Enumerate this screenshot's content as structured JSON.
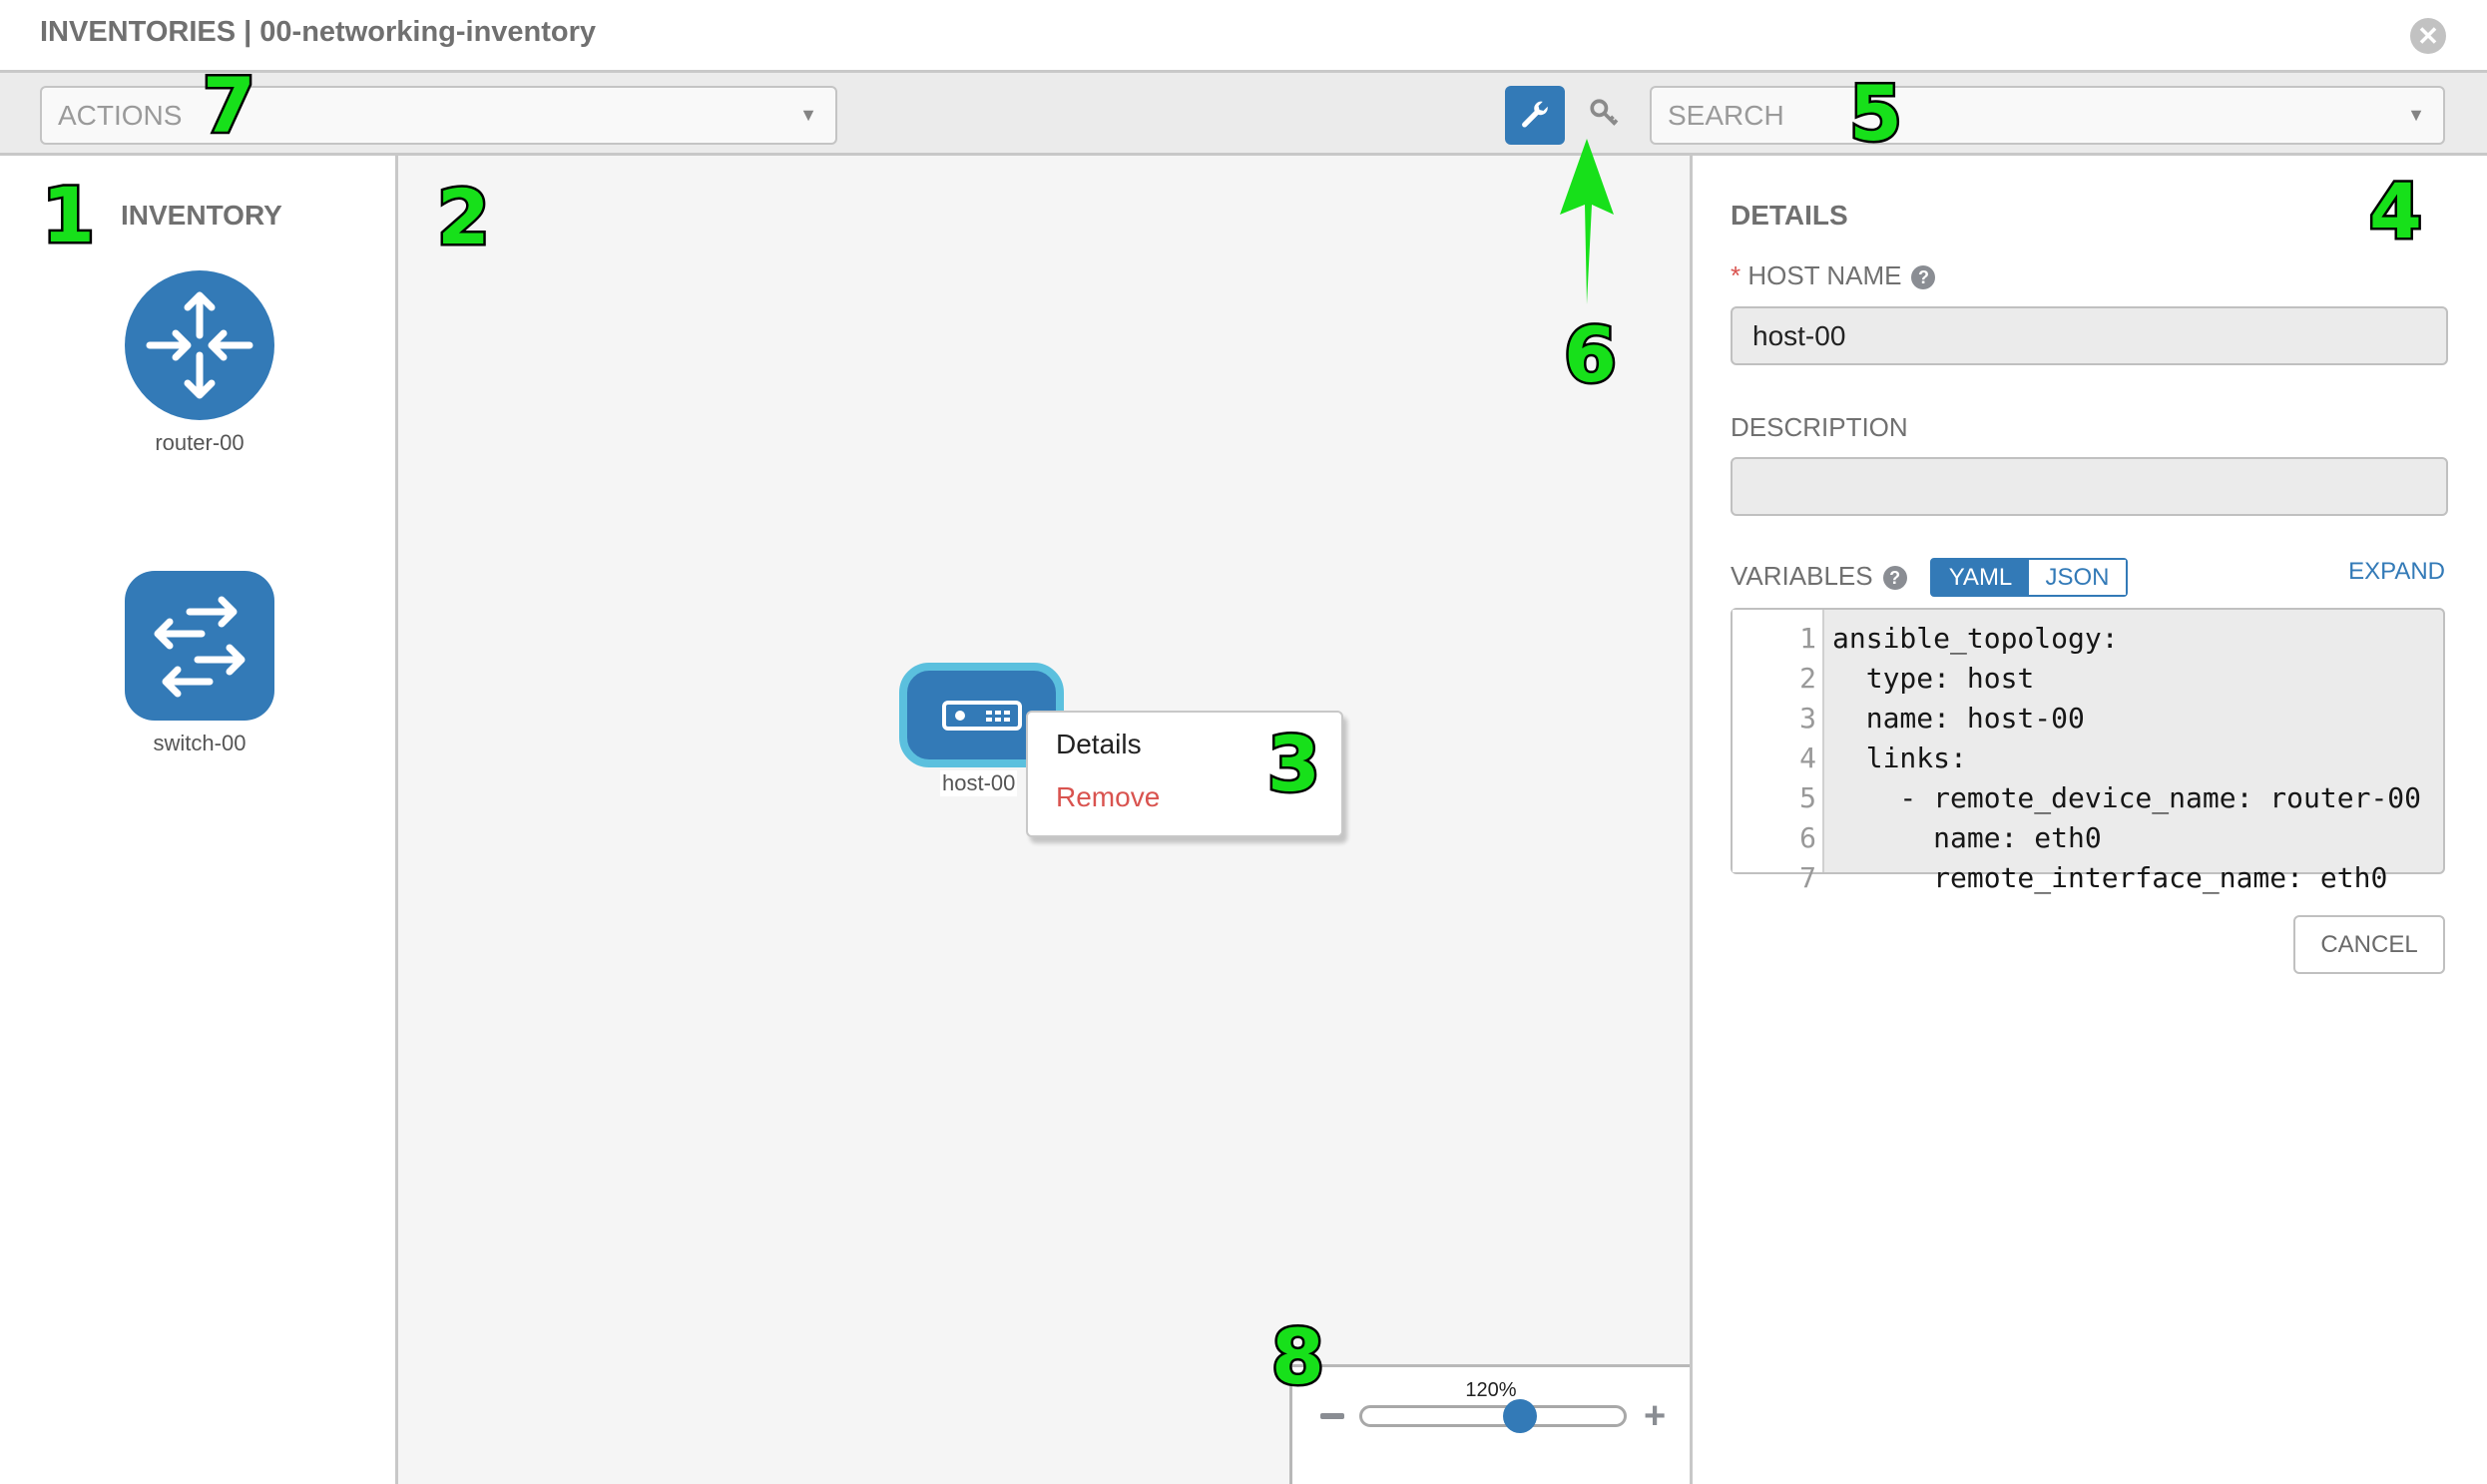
{
  "header": {
    "title": "INVENTORIES | 00-networking-inventory",
    "close_icon": "close-circle-icon"
  },
  "toolbar": {
    "actions_placeholder": "ACTIONS",
    "search_placeholder": "SEARCH",
    "wrench_icon": "wrench-icon",
    "key_icon": "key-icon",
    "active_color": "#337ab7"
  },
  "inventory": {
    "title": "INVENTORY",
    "items": [
      {
        "label": "router-00",
        "icon": "router-icon"
      },
      {
        "label": "switch-00",
        "icon": "switch-icon"
      }
    ]
  },
  "canvas": {
    "host": {
      "label": "host-00",
      "icon": "server-icon",
      "selected_border": "#5bc0de"
    },
    "context_menu": {
      "details": "Details",
      "remove": "Remove",
      "remove_color": "#d9534f"
    },
    "zoom": {
      "label": "120%",
      "value_percent": 120,
      "slider_fraction": 0.6
    }
  },
  "details": {
    "title": "DETAILS",
    "host_name_label": "HOST NAME",
    "required_mark": "*",
    "host_name_value": "host-00",
    "description_label": "DESCRIPTION",
    "description_value": "",
    "variables_label": "VARIABLES",
    "yaml": "YAML",
    "json": "JSON",
    "active_format": "YAML",
    "expand": "EXPAND",
    "cancel": "CANCEL",
    "code_lines": [
      {
        "n": "1",
        "text": "ansible_topology:"
      },
      {
        "n": "2",
        "text": "  type: host"
      },
      {
        "n": "3",
        "text": "  name: host-00"
      },
      {
        "n": "4",
        "text": "  links:"
      },
      {
        "n": "5",
        "text": "    - remote_device_name: router-00"
      },
      {
        "n": "6",
        "text": "      name: eth0"
      },
      {
        "n": "7",
        "text": "      remote_interface_name: eth0"
      }
    ]
  },
  "annotations": [
    "1",
    "2",
    "3",
    "4",
    "5",
    "6",
    "7",
    "8"
  ]
}
